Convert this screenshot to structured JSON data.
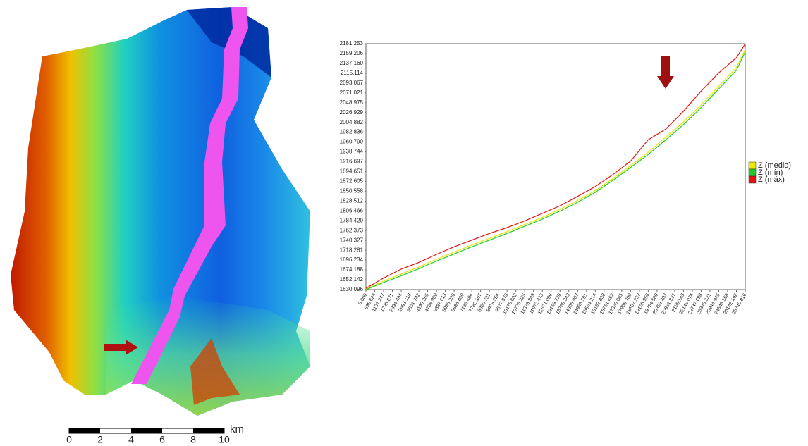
{
  "chart_data": {
    "type": "line",
    "x": [
      0,
      1197,
      2394,
      3591,
      4789,
      5986,
      7183,
      8381,
      9578,
      10775,
      11972,
      13170,
      14367,
      15564,
      16762,
      17959,
      19156,
      20353,
      21550,
      22748,
      23945,
      25142,
      25741
    ],
    "series": [
      {
        "name": "Z (medio)",
        "color": "#e8e800",
        "values": [
          1631,
          1649,
          1665,
          1681,
          1698,
          1714,
          1730,
          1745,
          1760,
          1776,
          1792,
          1810,
          1830,
          1852,
          1879,
          1908,
          1938,
          1972,
          2006,
          2044,
          2086,
          2128,
          2168
        ]
      },
      {
        "name": "Z (mín)",
        "color": "#22cc22",
        "values": [
          1630,
          1646,
          1661,
          1677,
          1694,
          1710,
          1726,
          1741,
          1756,
          1772,
          1788,
          1806,
          1826,
          1848,
          1875,
          1904,
          1933,
          1966,
          2000,
          2038,
          2080,
          2122,
          2163
        ]
      },
      {
        "name": "Z (máx)",
        "color": "#e81010",
        "values": [
          1633,
          1656,
          1676,
          1691,
          1709,
          1726,
          1741,
          1756,
          1769,
          1784,
          1801,
          1818,
          1839,
          1861,
          1888,
          1918,
          1966,
          1990,
          2030,
          2075,
          2116,
          2150,
          2181
        ]
      }
    ],
    "xlim": [
      0,
      25740.816
    ],
    "xticks": [
      {
        "value": 0,
        "label": "0.000"
      },
      598.624,
      1197.247,
      1795.871,
      2394.494,
      2993.118,
      3591.742,
      4190.365,
      4788.989,
      5387.613,
      5986.236,
      {
        "value": 6584.86,
        "label": "6584.860"
      },
      7183.484,
      7782.107,
      8380.731,
      8979.354,
      9577.978,
      10176.602,
      10775.225,
      11373.849,
      11972.473,
      12571.096,
      {
        "value": 13169.72,
        "label": "13169.720"
      },
      13768.343,
      14366.967,
      14965.591,
      15564.214,
      16162.838,
      16761.462,
      17360.085,
      17958.709,
      18557.332,
      19155.956,
      {
        "value": 19754.58,
        "label": "19754.580"
      },
      20353.203,
      20951.827,
      21550.45,
      22149.074,
      22747.698,
      23346.321,
      23944.945,
      24543.568,
      25142.192,
      25740.816
    ],
    "ylim": [
      1630.096,
      2181.253
    ],
    "yticks": [
      2181.253,
      2159.206,
      {
        "value": 2137.16,
        "label": "2137.160"
      },
      2115.114,
      2093.067,
      2071.021,
      2048.975,
      2026.929,
      2004.882,
      1982.836,
      {
        "value": 1960.79,
        "label": "1960.790"
      },
      1938.744,
      1916.697,
      1894.651,
      1872.605,
      1850.558,
      1828.512,
      1806.466,
      {
        "value": 1784.42,
        "label": "1784.420"
      },
      1762.373,
      1740.327,
      1718.281,
      1696.234,
      1674.188,
      1652.142,
      1630.096
    ],
    "legend": "right"
  },
  "map": {
    "scale_labels": [
      "0",
      "2",
      "4",
      "6",
      "8",
      "10"
    ],
    "scale_unit": "km"
  }
}
